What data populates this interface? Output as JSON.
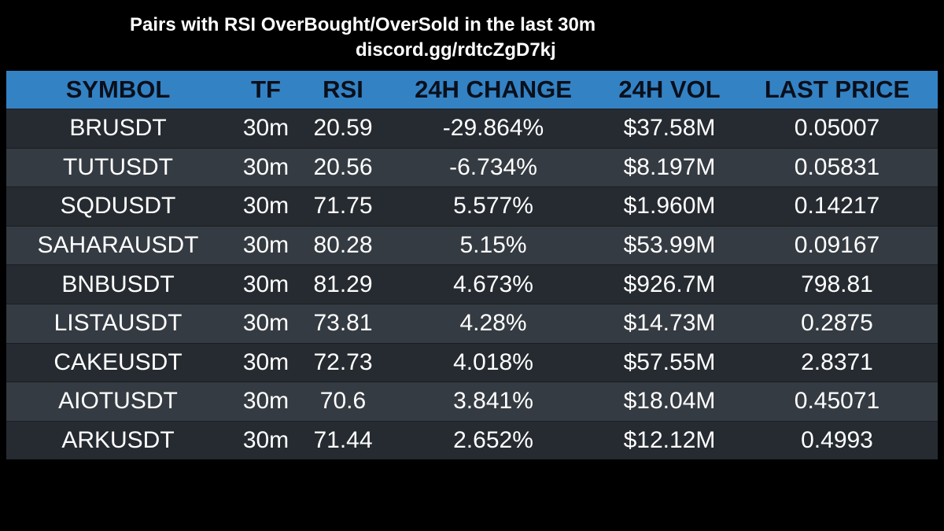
{
  "title": "Pairs with RSI OverBought/OverSold in the last 30m",
  "subtitle": "discord.gg/rdtcZgD7kj",
  "colors": {
    "background": "#000000",
    "header_bg": "#3382c4",
    "header_text": "#0a0f1a",
    "row_dark": "#262b31",
    "row_light": "#353b42",
    "cell_text": "#ffffff"
  },
  "table": {
    "headers": [
      "SYMBOL",
      "TF",
      "RSI",
      "24H CHANGE",
      "24H VOL",
      "LAST PRICE"
    ],
    "rows": [
      [
        "BRUSDT",
        "30m",
        "20.59",
        "-29.864%",
        "$37.58M",
        "0.05007"
      ],
      [
        "TUTUSDT",
        "30m",
        "20.56",
        "-6.734%",
        "$8.197M",
        "0.05831"
      ],
      [
        "SQDUSDT",
        "30m",
        "71.75",
        "5.577%",
        "$1.960M",
        "0.14217"
      ],
      [
        "SAHARAUSDT",
        "30m",
        "80.28",
        "5.15%",
        "$53.99M",
        "0.09167"
      ],
      [
        "BNBUSDT",
        "30m",
        "81.29",
        "4.673%",
        "$926.7M",
        "798.81"
      ],
      [
        "LISTAUSDT",
        "30m",
        "73.81",
        "4.28%",
        "$14.73M",
        "0.2875"
      ],
      [
        "CAKEUSDT",
        "30m",
        "72.73",
        "4.018%",
        "$57.55M",
        "2.8371"
      ],
      [
        "AIOTUSDT",
        "30m",
        "70.6",
        "3.841%",
        "$18.04M",
        "0.45071"
      ],
      [
        "ARKUSDT",
        "30m",
        "71.44",
        "2.652%",
        "$12.12M",
        "0.4993"
      ]
    ]
  }
}
